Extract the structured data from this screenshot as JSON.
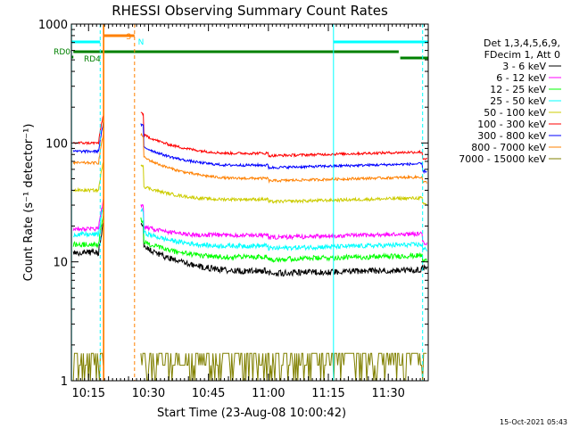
{
  "chart_data": {
    "type": "line",
    "title": "RHESSI Observing Summary Count Rates",
    "xlabel": "Start Time (23-Aug-08 10:00:42)",
    "ylabel": "Count Rate (s⁻¹ detector⁻¹)",
    "yscale": "log",
    "ylim": [
      1,
      1000
    ],
    "xlim_minutes": [
      10.7,
      100.0
    ],
    "x_ticks": [
      {
        "minute": 15,
        "label": "10:15"
      },
      {
        "minute": 30,
        "label": "10:30"
      },
      {
        "minute": 45,
        "label": "10:45"
      },
      {
        "minute": 60,
        "label": "11:00"
      },
      {
        "minute": 75,
        "label": "11:15"
      },
      {
        "minute": 90,
        "label": "11:30"
      }
    ],
    "y_ticks": [
      {
        "value": 1,
        "label": "1"
      },
      {
        "value": 10,
        "label": "10"
      },
      {
        "value": 100,
        "label": "100"
      },
      {
        "value": 1000,
        "label": "1000"
      }
    ],
    "legend": {
      "placement": "right",
      "header": [
        "Det 1,3,4,5,6,9,",
        "FDecim 1, Att 0"
      ]
    },
    "series": [
      {
        "name": "3 - 6 keV",
        "color": "#000000",
        "pre": 12,
        "post_start": 14,
        "post_mid": 8,
        "post_end": 10.5,
        "noise": 0.06
      },
      {
        "name": "6 - 12 keV",
        "color": "#ff00ff",
        "pre": 19,
        "post_start": 20,
        "post_mid": 16,
        "post_end": 17,
        "noise": 0.04
      },
      {
        "name": "12 - 25 keV",
        "color": "#00ff00",
        "pre": 14,
        "post_start": 15,
        "post_mid": 10.5,
        "post_end": 12,
        "noise": 0.05
      },
      {
        "name": "25 - 50 keV",
        "color": "#00ffff",
        "pre": 17,
        "post_start": 18,
        "post_mid": 13,
        "post_end": 15,
        "noise": 0.045
      },
      {
        "name": "50 - 100 keV",
        "color": "#cccc00",
        "pre": 40,
        "post_start": 44,
        "post_mid": 32,
        "post_end": 36,
        "noise": 0.03
      },
      {
        "name": "100 - 300 keV",
        "color": "#ff0000",
        "pre": 100,
        "post_start": 120,
        "post_mid": 78,
        "post_end": 87,
        "noise": 0.025
      },
      {
        "name": "300 - 800 keV",
        "color": "#0000ff",
        "pre": 85,
        "post_start": 95,
        "post_mid": 62,
        "post_end": 68,
        "noise": 0.025
      },
      {
        "name": "800 - 7000 keV",
        "color": "#ff8000",
        "pre": 68,
        "post_start": 78,
        "post_mid": 48,
        "post_end": 55,
        "noise": 0.025
      },
      {
        "name": "7000 - 15000 keV",
        "color": "#808000",
        "pre": 1.7,
        "post_start": 1.6,
        "post_mid": 1.7,
        "post_end": 1.6,
        "noise": 0.0
      }
    ],
    "gap_minutes": [
      18.7,
      26.5
    ],
    "saa_minutes": [
      76.3,
      98.6
    ],
    "flags": [
      {
        "label": "RD0",
        "color": "#008000"
      },
      {
        "label": "RD4",
        "color": "#008000"
      },
      {
        "label": "S",
        "color": "#ff8000"
      },
      {
        "label": "N",
        "color": "#00ffff"
      }
    ]
  },
  "footer": {
    "stamp": "15-Oct-2021 05:43"
  }
}
